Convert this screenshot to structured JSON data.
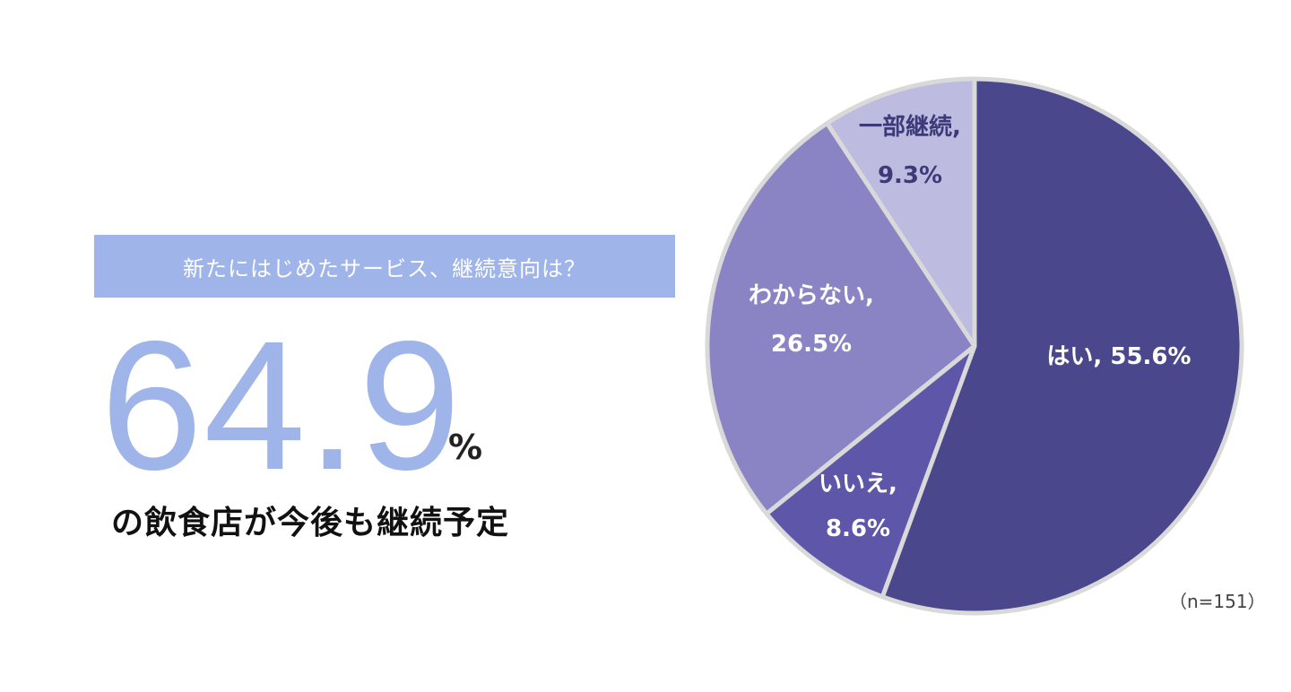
{
  "banner": {
    "text": "新たにはじめたサービス、継続意向は？"
  },
  "headline": {
    "value": "64.9",
    "unit": "%"
  },
  "subtitle": "の飲食店が今後も継続予定",
  "sample_note": "（n=151）",
  "chart_data": {
    "type": "pie",
    "title": "",
    "start_angle_deg": 0,
    "direction": "clockwise",
    "slices": [
      {
        "label": "はい",
        "value": 55.6,
        "label_text": "はい, 55.6%",
        "color": "#4b478c",
        "label_color": "#ffffff"
      },
      {
        "label": "いいえ",
        "value": 8.6,
        "label_text": "いいえ, 8.6%",
        "color": "#5e56a8",
        "label_color": "#ffffff"
      },
      {
        "label": "わからない",
        "value": 26.5,
        "label_text": "わからない, 26.5%",
        "color": "#8a84c4",
        "label_color": "#ffffff"
      },
      {
        "label": "一部継続",
        "value": 9.3,
        "label_text": "一部継続, 9.3%",
        "color": "#bdbbdf",
        "label_color": "#3d3a7a"
      }
    ],
    "colors": {
      "border": "#d9d9d9"
    }
  }
}
